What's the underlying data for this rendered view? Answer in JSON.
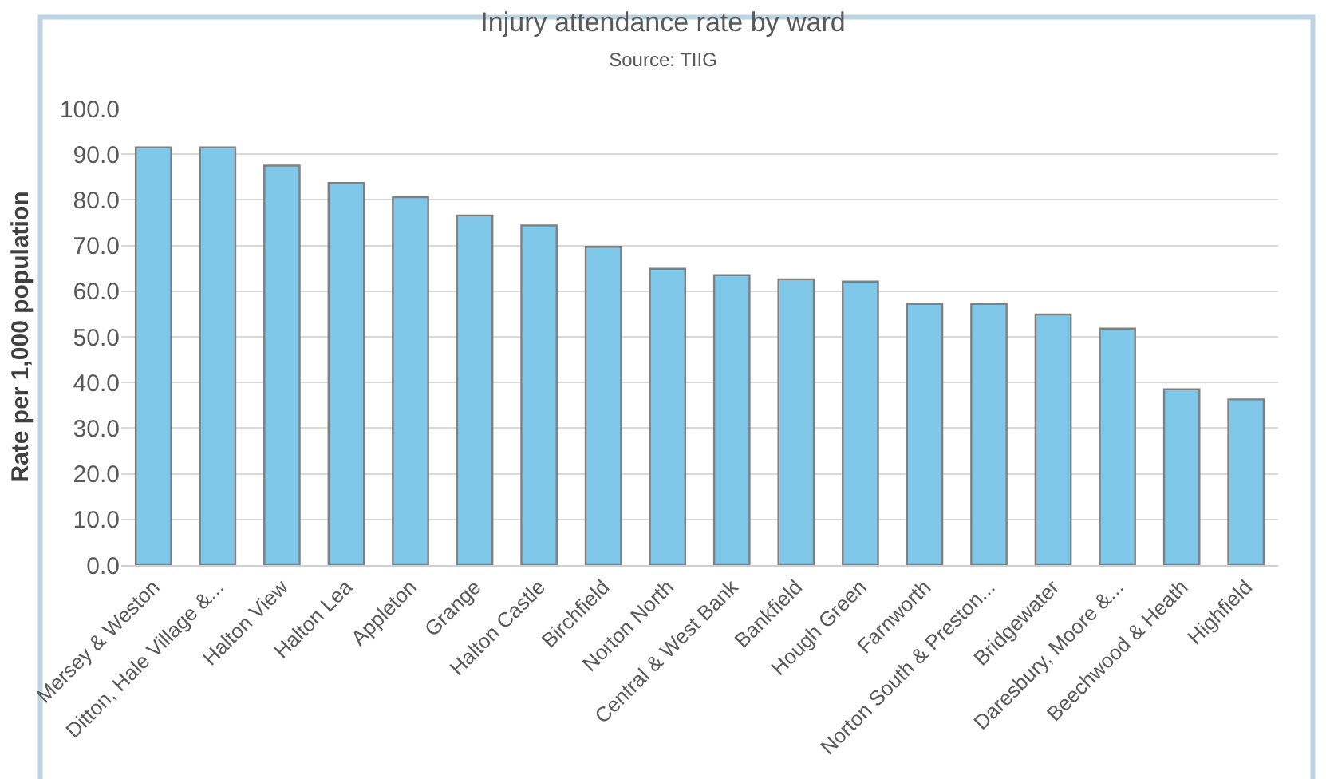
{
  "chart_data": {
    "type": "bar",
    "title": "Injury attendance rate by ward",
    "subtitle": "Source: TIIG",
    "ylabel": "Rate per 1,000 population",
    "categories": [
      "Mersey & Weston",
      "Ditton, Hale Village &...",
      "Halton View",
      "Halton Lea",
      "Appleton",
      "Grange",
      "Halton Castle",
      "Birchfield",
      "Norton North",
      "Central & West Bank",
      "Bankfield",
      "Hough Green",
      "Farnworth",
      "Norton South & Preston...",
      "Bridgewater",
      "Daresbury, Moore &...",
      "Beechwood & Heath",
      "Highfield"
    ],
    "values": [
      91.5,
      91.5,
      87.5,
      83.7,
      80.6,
      76.6,
      74.4,
      69.7,
      64.9,
      63.5,
      62.6,
      62.1,
      57.2,
      57.2,
      54.9,
      51.8,
      38.5,
      36.3
    ],
    "color": "#80c8ea",
    "ylim": [
      0,
      100
    ],
    "yticks": [
      {
        "value": 0,
        "label": "0.0"
      },
      {
        "value": 10,
        "label": "10.0"
      },
      {
        "value": 20,
        "label": "20.0"
      },
      {
        "value": 30,
        "label": "30.0"
      },
      {
        "value": 40,
        "label": "40.0"
      },
      {
        "value": 50,
        "label": "50.0"
      },
      {
        "value": 60,
        "label": "60.0"
      },
      {
        "value": 70,
        "label": "70.0"
      },
      {
        "value": 80,
        "label": "80.0"
      },
      {
        "value": 90,
        "label": "90.0"
      },
      {
        "value": 100,
        "label": "100.0"
      }
    ],
    "grid": "y",
    "legend": false
  }
}
